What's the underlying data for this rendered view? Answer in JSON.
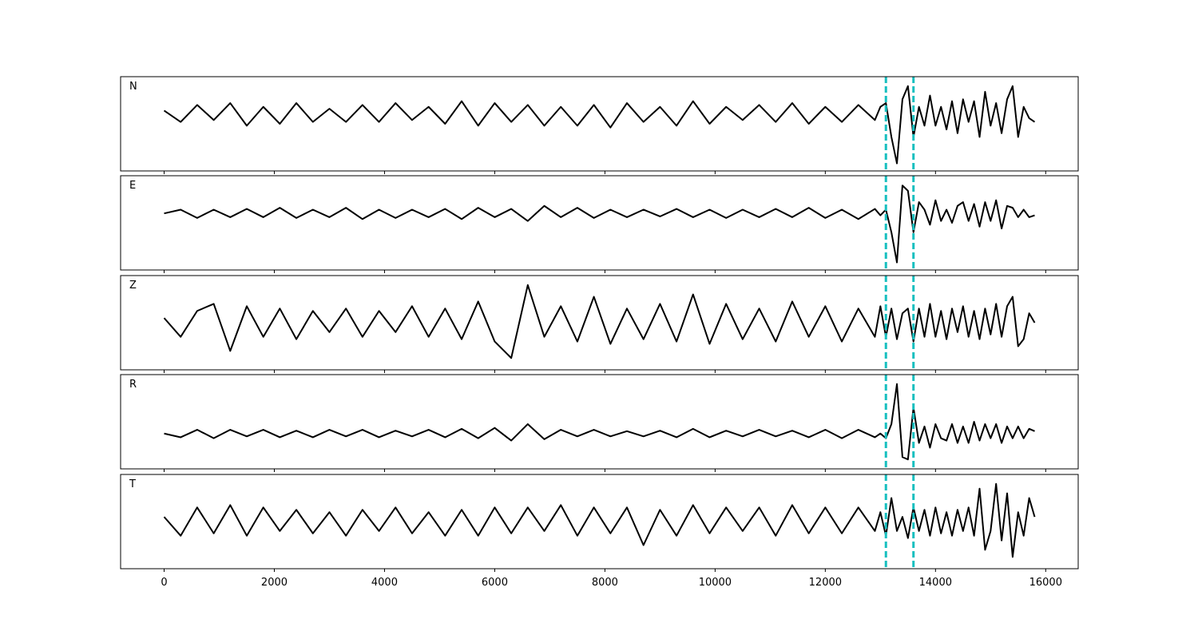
{
  "chart_data": [
    {
      "type": "line",
      "label": "N",
      "color": "#000000",
      "vline_color": "#17bfbf",
      "vlines": [
        13100,
        13600
      ],
      "xlim": [
        -790,
        16590
      ],
      "ylim": [
        -1.5,
        1.0
      ],
      "xticks": [
        0,
        2000,
        4000,
        6000,
        8000,
        10000,
        12000,
        14000,
        16000
      ],
      "x": [
        0,
        300,
        600,
        900,
        1200,
        1500,
        1800,
        2100,
        2400,
        2700,
        3000,
        3300,
        3600,
        3900,
        4200,
        4500,
        4800,
        5100,
        5400,
        5700,
        6000,
        6300,
        6600,
        6900,
        7200,
        7500,
        7800,
        8100,
        8400,
        8700,
        9000,
        9300,
        9600,
        9900,
        10200,
        10500,
        10800,
        11100,
        11400,
        11700,
        12000,
        12300,
        12600,
        12900,
        13000,
        13100,
        13200,
        13300,
        13400,
        13500,
        13600,
        13700,
        13800,
        13900,
        14000,
        14100,
        14200,
        14300,
        14400,
        14500,
        14600,
        14700,
        14800,
        14900,
        15000,
        15100,
        15200,
        15300,
        15400,
        15500,
        15600,
        15700,
        15800
      ],
      "values": [
        0.1,
        -0.2,
        0.25,
        -0.15,
        0.3,
        -0.3,
        0.2,
        -0.25,
        0.3,
        -0.2,
        0.15,
        -0.2,
        0.25,
        -0.2,
        0.3,
        -0.15,
        0.2,
        -0.25,
        0.35,
        -0.3,
        0.3,
        -0.2,
        0.25,
        -0.3,
        0.2,
        -0.3,
        0.25,
        -0.35,
        0.3,
        -0.2,
        0.2,
        -0.3,
        0.35,
        -0.25,
        0.2,
        -0.15,
        0.25,
        -0.2,
        0.3,
        -0.25,
        0.2,
        -0.2,
        0.25,
        -0.15,
        0.2,
        0.3,
        -0.6,
        -1.3,
        0.4,
        0.75,
        -0.6,
        0.2,
        -0.3,
        0.5,
        -0.3,
        0.2,
        -0.4,
        0.35,
        -0.5,
        0.4,
        -0.2,
        0.35,
        -0.6,
        0.6,
        -0.3,
        0.3,
        -0.5,
        0.4,
        0.75,
        -0.6,
        0.2,
        -0.1,
        -0.2
      ]
    },
    {
      "type": "line",
      "label": "E",
      "color": "#000000",
      "vline_color": "#17bfbf",
      "vlines": [
        13100,
        13600
      ],
      "xlim": [
        -790,
        16590
      ],
      "ylim": [
        -1.5,
        1.0
      ],
      "xticks": [
        0,
        2000,
        4000,
        6000,
        8000,
        10000,
        12000,
        14000,
        16000
      ],
      "x": [
        0,
        300,
        600,
        900,
        1200,
        1500,
        1800,
        2100,
        2400,
        2700,
        3000,
        3300,
        3600,
        3900,
        4200,
        4500,
        4800,
        5100,
        5400,
        5700,
        6000,
        6300,
        6600,
        6900,
        7200,
        7500,
        7800,
        8100,
        8400,
        8700,
        9000,
        9300,
        9600,
        9900,
        10200,
        10500,
        10800,
        11100,
        11400,
        11700,
        12000,
        12300,
        12600,
        12900,
        13000,
        13100,
        13200,
        13300,
        13400,
        13500,
        13600,
        13700,
        13800,
        13900,
        14000,
        14100,
        14200,
        14300,
        14400,
        14500,
        14600,
        14700,
        14800,
        14900,
        15000,
        15100,
        15200,
        15300,
        15400,
        15500,
        15600,
        15700,
        15800
      ],
      "values": [
        0.0,
        0.1,
        -0.12,
        0.1,
        -0.1,
        0.12,
        -0.1,
        0.15,
        -0.12,
        0.1,
        -0.1,
        0.15,
        -0.15,
        0.1,
        -0.12,
        0.1,
        -0.1,
        0.12,
        -0.15,
        0.15,
        -0.1,
        0.12,
        -0.2,
        0.2,
        -0.1,
        0.15,
        -0.12,
        0.1,
        -0.1,
        0.1,
        -0.08,
        0.12,
        -0.1,
        0.1,
        -0.12,
        0.1,
        -0.1,
        0.12,
        -0.1,
        0.15,
        -0.12,
        0.1,
        -0.15,
        0.12,
        -0.05,
        0.1,
        -0.5,
        -1.3,
        0.74,
        0.6,
        -0.5,
        0.3,
        0.1,
        -0.3,
        0.35,
        -0.2,
        0.1,
        -0.25,
        0.2,
        0.3,
        -0.2,
        0.25,
        -0.35,
        0.3,
        -0.2,
        0.35,
        -0.4,
        0.2,
        0.15,
        -0.1,
        0.1,
        -0.1,
        -0.05
      ]
    },
    {
      "type": "line",
      "label": "Z",
      "color": "#000000",
      "vline_color": "#17bfbf",
      "vlines": [
        13100,
        13600
      ],
      "xlim": [
        -790,
        16590
      ],
      "ylim": [
        -1.0,
        1.0
      ],
      "xticks": [
        0,
        2000,
        4000,
        6000,
        8000,
        10000,
        12000,
        14000,
        16000
      ],
      "x": [
        0,
        300,
        600,
        900,
        1200,
        1500,
        1800,
        2100,
        2400,
        2700,
        3000,
        3300,
        3600,
        3900,
        4200,
        4500,
        4800,
        5100,
        5400,
        5700,
        6000,
        6300,
        6600,
        6900,
        7200,
        7500,
        7800,
        8100,
        8400,
        8700,
        9000,
        9300,
        9600,
        9900,
        10200,
        10500,
        10800,
        11100,
        11400,
        11700,
        12000,
        12300,
        12600,
        12900,
        13000,
        13100,
        13200,
        13300,
        13400,
        13500,
        13600,
        13700,
        13800,
        13900,
        14000,
        14100,
        14200,
        14300,
        14400,
        14500,
        14600,
        14700,
        14800,
        14900,
        15000,
        15100,
        15200,
        15300,
        15400,
        15500,
        15600,
        15700,
        15800
      ],
      "values": [
        0.1,
        -0.3,
        0.25,
        0.4,
        -0.6,
        0.35,
        -0.3,
        0.3,
        -0.35,
        0.25,
        -0.2,
        0.3,
        -0.3,
        0.25,
        -0.2,
        0.35,
        -0.3,
        0.3,
        -0.35,
        0.45,
        -0.4,
        -0.75,
        0.8,
        -0.3,
        0.35,
        -0.4,
        0.55,
        -0.45,
        0.3,
        -0.35,
        0.4,
        -0.4,
        0.6,
        -0.45,
        0.4,
        -0.35,
        0.3,
        -0.4,
        0.45,
        -0.3,
        0.35,
        -0.4,
        0.3,
        -0.3,
        0.35,
        -0.3,
        0.3,
        -0.35,
        0.2,
        0.3,
        -0.4,
        0.3,
        -0.3,
        0.4,
        -0.3,
        0.25,
        -0.35,
        0.3,
        -0.2,
        0.35,
        -0.3,
        0.25,
        -0.35,
        0.3,
        -0.25,
        0.4,
        -0.3,
        0.35,
        0.55,
        -0.5,
        -0.35,
        0.2,
        0.0
      ]
    },
    {
      "type": "line",
      "label": "R",
      "color": "#000000",
      "vline_color": "#17bfbf",
      "vlines": [
        13100,
        13600
      ],
      "xlim": [
        -790,
        16590
      ],
      "ylim": [
        -0.75,
        1.25
      ],
      "xticks": [
        0,
        2000,
        4000,
        6000,
        8000,
        10000,
        12000,
        14000,
        16000
      ],
      "x": [
        0,
        300,
        600,
        900,
        1200,
        1500,
        1800,
        2100,
        2400,
        2700,
        3000,
        3300,
        3600,
        3900,
        4200,
        4500,
        4800,
        5100,
        5400,
        5700,
        6000,
        6300,
        6600,
        6900,
        7200,
        7500,
        7800,
        8100,
        8400,
        8700,
        9000,
        9300,
        9600,
        9900,
        10200,
        10500,
        10800,
        11100,
        11400,
        11700,
        12000,
        12300,
        12600,
        12900,
        13000,
        13100,
        13200,
        13300,
        13400,
        13500,
        13600,
        13700,
        13800,
        13900,
        14000,
        14100,
        14200,
        14300,
        14400,
        14500,
        14600,
        14700,
        14800,
        14900,
        15000,
        15100,
        15200,
        15300,
        15400,
        15500,
        15600,
        15700,
        15800
      ],
      "values": [
        0.0,
        -0.08,
        0.08,
        -0.1,
        0.08,
        -0.06,
        0.08,
        -0.08,
        0.06,
        -0.08,
        0.08,
        -0.06,
        0.08,
        -0.08,
        0.06,
        -0.06,
        0.08,
        -0.08,
        0.1,
        -0.1,
        0.12,
        -0.15,
        0.2,
        -0.12,
        0.08,
        -0.06,
        0.08,
        -0.06,
        0.05,
        -0.06,
        0.06,
        -0.08,
        0.1,
        -0.08,
        0.06,
        -0.06,
        0.08,
        -0.06,
        0.06,
        -0.08,
        0.08,
        -0.1,
        0.08,
        -0.08,
        0.0,
        -0.1,
        0.2,
        1.05,
        -0.5,
        -0.55,
        0.55,
        -0.2,
        0.15,
        -0.3,
        0.2,
        -0.1,
        -0.15,
        0.2,
        -0.2,
        0.15,
        -0.2,
        0.25,
        -0.15,
        0.2,
        -0.1,
        0.2,
        -0.2,
        0.15,
        -0.1,
        0.15,
        -0.1,
        0.1,
        0.05
      ]
    },
    {
      "type": "line",
      "label": "T",
      "color": "#000000",
      "vline_color": "#17bfbf",
      "vlines": [
        13100,
        13600
      ],
      "xlim": [
        -790,
        16590
      ],
      "ylim": [
        -1.0,
        1.0
      ],
      "xticks": [
        0,
        2000,
        4000,
        6000,
        8000,
        10000,
        12000,
        14000,
        16000
      ],
      "tick_labels": true,
      "x": [
        0,
        300,
        600,
        900,
        1200,
        1500,
        1800,
        2100,
        2400,
        2700,
        3000,
        3300,
        3600,
        3900,
        4200,
        4500,
        4800,
        5100,
        5400,
        5700,
        6000,
        6300,
        6600,
        6900,
        7200,
        7500,
        7800,
        8100,
        8400,
        8700,
        9000,
        9300,
        9600,
        9900,
        10200,
        10500,
        10800,
        11100,
        11400,
        11700,
        12000,
        12300,
        12600,
        12900,
        13000,
        13100,
        13200,
        13300,
        13400,
        13500,
        13600,
        13700,
        13800,
        13900,
        14000,
        14100,
        14200,
        14300,
        14400,
        14500,
        14600,
        14700,
        14800,
        14900,
        15000,
        15100,
        15200,
        15300,
        15400,
        15500,
        15600,
        15700,
        15800
      ],
      "values": [
        0.1,
        -0.3,
        0.3,
        -0.25,
        0.35,
        -0.3,
        0.3,
        -0.2,
        0.25,
        -0.25,
        0.2,
        -0.3,
        0.25,
        -0.2,
        0.3,
        -0.25,
        0.2,
        -0.3,
        0.25,
        -0.3,
        0.3,
        -0.25,
        0.3,
        -0.2,
        0.35,
        -0.3,
        0.3,
        -0.25,
        0.3,
        -0.5,
        0.25,
        -0.3,
        0.35,
        -0.25,
        0.3,
        -0.2,
        0.3,
        -0.3,
        0.35,
        -0.25,
        0.3,
        -0.25,
        0.3,
        -0.2,
        0.2,
        -0.3,
        0.5,
        -0.2,
        0.1,
        -0.35,
        0.3,
        -0.2,
        0.25,
        -0.3,
        0.3,
        -0.25,
        0.2,
        -0.3,
        0.25,
        -0.2,
        0.3,
        -0.3,
        0.7,
        -0.6,
        -0.2,
        0.8,
        -0.4,
        0.6,
        -0.75,
        0.2,
        -0.3,
        0.5,
        0.1
      ]
    }
  ]
}
